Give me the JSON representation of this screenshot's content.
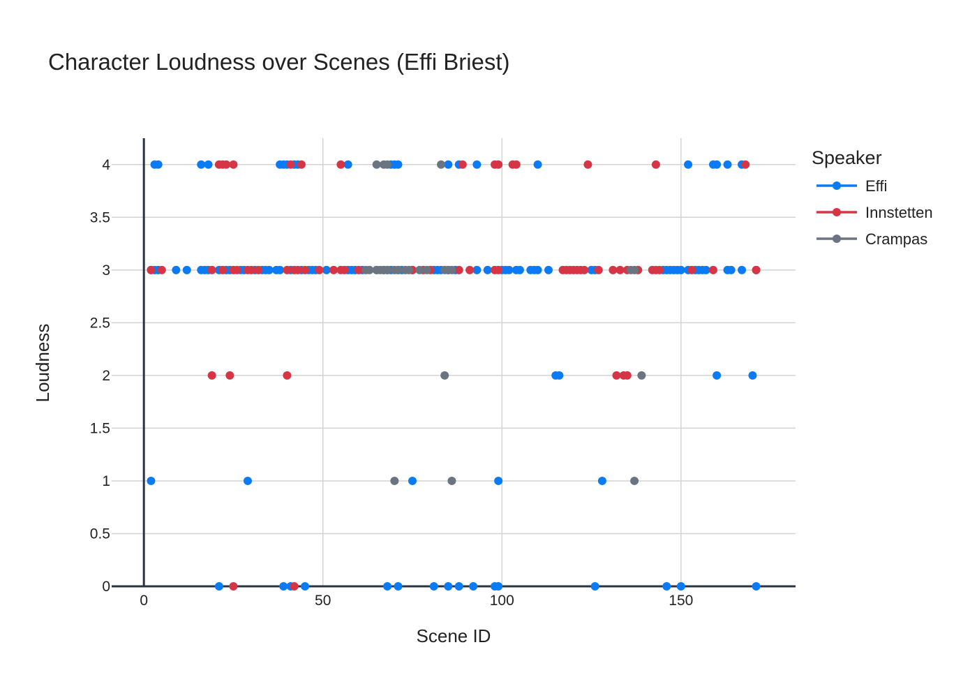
{
  "chart_data": {
    "type": "scatter",
    "title": "Character Loudness over Scenes (Effi Briest)",
    "xlabel": "Scene ID",
    "ylabel": "Loudness",
    "xlim": [
      -9,
      182
    ],
    "ylim": [
      0,
      4.25
    ],
    "xticks": [
      0,
      50,
      100,
      150
    ],
    "xtick_labels": [
      "0",
      "50",
      "100",
      "150"
    ],
    "yticks": [
      0,
      0.5,
      1,
      1.5,
      2,
      2.5,
      3,
      3.5,
      4
    ],
    "ytick_labels": [
      "0",
      "0.5",
      "1",
      "1.5",
      "2",
      "2.5",
      "3",
      "3.5",
      "4"
    ],
    "grid": true,
    "legend_title": "Speaker",
    "legend_position": "right",
    "series": [
      {
        "name": "Effi",
        "color": "#0a7bf5",
        "points": [
          [
            2,
            1
          ],
          [
            29,
            1
          ],
          [
            75,
            1
          ],
          [
            99,
            1
          ],
          [
            128,
            1
          ],
          [
            21,
            0
          ],
          [
            39,
            0
          ],
          [
            41,
            0
          ],
          [
            45,
            0
          ],
          [
            68,
            0
          ],
          [
            71,
            0
          ],
          [
            81,
            0
          ],
          [
            85,
            0
          ],
          [
            88,
            0
          ],
          [
            92,
            0
          ],
          [
            98,
            0
          ],
          [
            99,
            0
          ],
          [
            126,
            0
          ],
          [
            146,
            0
          ],
          [
            150,
            0
          ],
          [
            171,
            0
          ],
          [
            115,
            2
          ],
          [
            116,
            2
          ],
          [
            160,
            2
          ],
          [
            170,
            2
          ],
          [
            3,
            4
          ],
          [
            4,
            4
          ],
          [
            16,
            4
          ],
          [
            18,
            4
          ],
          [
            38,
            4
          ],
          [
            39,
            4
          ],
          [
            40,
            4
          ],
          [
            42,
            4
          ],
          [
            43,
            4
          ],
          [
            57,
            4
          ],
          [
            69,
            4
          ],
          [
            70,
            4
          ],
          [
            71,
            4
          ],
          [
            85,
            4
          ],
          [
            88,
            4
          ],
          [
            93,
            4
          ],
          [
            110,
            4
          ],
          [
            152,
            4
          ],
          [
            159,
            4
          ],
          [
            160,
            4
          ],
          [
            163,
            4
          ],
          [
            167,
            4
          ],
          [
            2,
            3
          ],
          [
            3,
            3
          ],
          [
            4,
            3
          ],
          [
            9,
            3
          ],
          [
            12,
            3
          ],
          [
            16,
            3
          ],
          [
            17,
            3
          ],
          [
            18,
            3
          ],
          [
            21,
            3
          ],
          [
            23,
            3
          ],
          [
            24,
            3
          ],
          [
            27,
            3
          ],
          [
            28,
            3
          ],
          [
            31,
            3
          ],
          [
            33,
            3
          ],
          [
            34,
            3
          ],
          [
            35,
            3
          ],
          [
            37,
            3
          ],
          [
            38,
            3
          ],
          [
            41,
            3
          ],
          [
            44,
            3
          ],
          [
            46,
            3
          ],
          [
            47,
            3
          ],
          [
            48,
            3
          ],
          [
            51,
            3
          ],
          [
            57,
            3
          ],
          [
            58,
            3
          ],
          [
            59,
            3
          ],
          [
            61,
            3
          ],
          [
            65,
            3
          ],
          [
            67,
            3
          ],
          [
            68,
            3
          ],
          [
            69,
            3
          ],
          [
            71,
            3
          ],
          [
            72,
            3
          ],
          [
            75,
            3
          ],
          [
            81,
            3
          ],
          [
            82,
            3
          ],
          [
            83,
            3
          ],
          [
            85,
            3
          ],
          [
            87,
            3
          ],
          [
            93,
            3
          ],
          [
            96,
            3
          ],
          [
            100,
            3
          ],
          [
            101,
            3
          ],
          [
            102,
            3
          ],
          [
            104,
            3
          ],
          [
            105,
            3
          ],
          [
            108,
            3
          ],
          [
            109,
            3
          ],
          [
            110,
            3
          ],
          [
            113,
            3
          ],
          [
            125,
            3
          ],
          [
            126,
            3
          ],
          [
            145,
            3
          ],
          [
            146,
            3
          ],
          [
            147,
            3
          ],
          [
            148,
            3
          ],
          [
            149,
            3
          ],
          [
            150,
            3
          ],
          [
            152,
            3
          ],
          [
            154,
            3
          ],
          [
            155,
            3
          ],
          [
            156,
            3
          ],
          [
            157,
            3
          ],
          [
            163,
            3
          ],
          [
            164,
            3
          ],
          [
            167,
            3
          ],
          [
            171,
            3
          ]
        ]
      },
      {
        "name": "Innstetten",
        "color": "#d63545",
        "points": [
          [
            2,
            3
          ],
          [
            5,
            3
          ],
          [
            19,
            3
          ],
          [
            22,
            3
          ],
          [
            25,
            3
          ],
          [
            26,
            3
          ],
          [
            29,
            3
          ],
          [
            30,
            3
          ],
          [
            32,
            3
          ],
          [
            40,
            3
          ],
          [
            42,
            3
          ],
          [
            43,
            3
          ],
          [
            45,
            3
          ],
          [
            49,
            3
          ],
          [
            53,
            3
          ],
          [
            55,
            3
          ],
          [
            56,
            3
          ],
          [
            60,
            3
          ],
          [
            75,
            3
          ],
          [
            78,
            3
          ],
          [
            80,
            3
          ],
          [
            88,
            3
          ],
          [
            91,
            3
          ],
          [
            98,
            3
          ],
          [
            99,
            3
          ],
          [
            117,
            3
          ],
          [
            118,
            3
          ],
          [
            119,
            3
          ],
          [
            120,
            3
          ],
          [
            121,
            3
          ],
          [
            122,
            3
          ],
          [
            123,
            3
          ],
          [
            127,
            3
          ],
          [
            131,
            3
          ],
          [
            133,
            3
          ],
          [
            135,
            3
          ],
          [
            138,
            3
          ],
          [
            142,
            3
          ],
          [
            143,
            3
          ],
          [
            144,
            3
          ],
          [
            153,
            3
          ],
          [
            159,
            3
          ],
          [
            171,
            3
          ],
          [
            19,
            2
          ],
          [
            24,
            2
          ],
          [
            40,
            2
          ],
          [
            132,
            2
          ],
          [
            134,
            2
          ],
          [
            135,
            2
          ],
          [
            21,
            4
          ],
          [
            22,
            4
          ],
          [
            23,
            4
          ],
          [
            25,
            4
          ],
          [
            41,
            4
          ],
          [
            44,
            4
          ],
          [
            55,
            4
          ],
          [
            89,
            4
          ],
          [
            98,
            4
          ],
          [
            99,
            4
          ],
          [
            103,
            4
          ],
          [
            104,
            4
          ],
          [
            124,
            4
          ],
          [
            143,
            4
          ],
          [
            168,
            4
          ],
          [
            25,
            0
          ],
          [
            42,
            0
          ]
        ]
      },
      {
        "name": "Crampas",
        "color": "#6a7581",
        "points": [
          [
            65,
            4
          ],
          [
            67,
            4
          ],
          [
            68,
            4
          ],
          [
            83,
            4
          ],
          [
            62,
            3
          ],
          [
            63,
            3
          ],
          [
            65,
            3
          ],
          [
            66,
            3
          ],
          [
            67,
            3
          ],
          [
            68,
            3
          ],
          [
            70,
            3
          ],
          [
            71,
            3
          ],
          [
            73,
            3
          ],
          [
            74,
            3
          ],
          [
            77,
            3
          ],
          [
            79,
            3
          ],
          [
            84,
            3
          ],
          [
            85,
            3
          ],
          [
            86,
            3
          ],
          [
            136,
            3
          ],
          [
            137,
            3
          ],
          [
            84,
            2
          ],
          [
            139,
            2
          ],
          [
            70,
            1
          ],
          [
            86,
            1
          ],
          [
            137,
            1
          ]
        ]
      }
    ]
  }
}
